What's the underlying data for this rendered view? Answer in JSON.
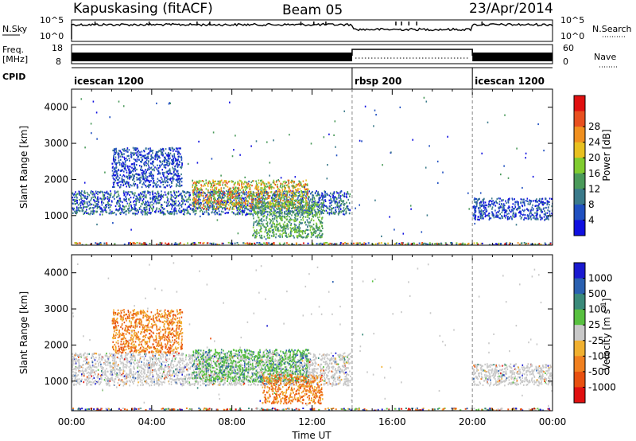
{
  "header": {
    "station": "Kapuskasing (fitACF)",
    "beam": "Beam 05",
    "date": "23/Apr/2014"
  },
  "noise_panel": {
    "left_label": "N.Sky",
    "right_label": "N.Search",
    "ticks": [
      "10^5",
      "10^0"
    ]
  },
  "freq_panel": {
    "left_label_1": "Freq.",
    "left_label_2": "[MHz]",
    "right_label": "Nave",
    "left_ticks": [
      "18",
      "8"
    ],
    "right_ticks": [
      "60",
      "0"
    ]
  },
  "cpid": {
    "label": "CPID",
    "segments": [
      {
        "name": "icescan 1200",
        "start": 0,
        "end": 14
      },
      {
        "name": "rbsp 200",
        "start": 14,
        "end": 20
      },
      {
        "name": "icescan 1200",
        "start": 20,
        "end": 24
      }
    ]
  },
  "chart_data": {
    "type": "heatmap",
    "xlabel": "Time UT",
    "ylabel": "Slant Range [km]",
    "xlim": [
      0,
      24
    ],
    "ylim": [
      180,
      4500
    ],
    "x_ticks": [
      "00:00",
      "04:00",
      "08:00",
      "12:00",
      "16:00",
      "20:00",
      "00:00"
    ],
    "y_ticks": [
      1000,
      2000,
      3000,
      4000
    ],
    "mode_change_hours": [
      14,
      20
    ],
    "panels": [
      {
        "name": "power",
        "colorbar_label": "Power [dB]",
        "colorbar_ticks": [
          "4",
          "8",
          "12",
          "16",
          "20",
          "24",
          "28"
        ],
        "colors": [
          "#1010e0",
          "#2050c0",
          "#3a7a8a",
          "#4a9a5a",
          "#80cc30",
          "#e8c020",
          "#f09020",
          "#e85020",
          "#e01010"
        ],
        "echo_regions": [
          {
            "t0": 0.0,
            "t1": 13.9,
            "r0": 1050,
            "r1": 1700,
            "level": "low-mid"
          },
          {
            "t0": 2.0,
            "t1": 5.5,
            "r0": 1800,
            "r1": 2900,
            "level": "low"
          },
          {
            "t0": 6.0,
            "t1": 11.8,
            "r0": 1200,
            "r1": 2000,
            "level": "high"
          },
          {
            "t0": 9.0,
            "t1": 12.5,
            "r0": 400,
            "r1": 1400,
            "level": "mid"
          },
          {
            "t0": 20.0,
            "t1": 24.0,
            "r0": 900,
            "r1": 1500,
            "level": "low"
          }
        ]
      },
      {
        "name": "velocity",
        "colorbar_label": "Velocity [m s^-1]",
        "colorbar_ticks": [
          "1000",
          "500",
          "100",
          "25",
          "-25",
          "-100",
          "-500",
          "-1000"
        ],
        "colors": [
          "#1a1ad0",
          "#2a60b0",
          "#3a8a7a",
          "#58c040",
          "#c8c8c8",
          "#f0b030",
          "#f08020",
          "#e85010",
          "#e01010"
        ],
        "echo_regions": [
          {
            "t0": 0.0,
            "t1": 13.9,
            "r0": 900,
            "r1": 1800,
            "level": "ground-scatter"
          },
          {
            "t0": 2.0,
            "t1": 5.5,
            "r0": 1800,
            "r1": 3000,
            "level": "negative"
          },
          {
            "t0": 6.0,
            "t1": 11.8,
            "r0": 1000,
            "r1": 1900,
            "level": "positive"
          },
          {
            "t0": 9.5,
            "t1": 12.5,
            "r0": 400,
            "r1": 1200,
            "level": "negative"
          },
          {
            "t0": 20.0,
            "t1": 24.0,
            "r0": 900,
            "r1": 1500,
            "level": "ground-scatter"
          }
        ]
      }
    ]
  }
}
